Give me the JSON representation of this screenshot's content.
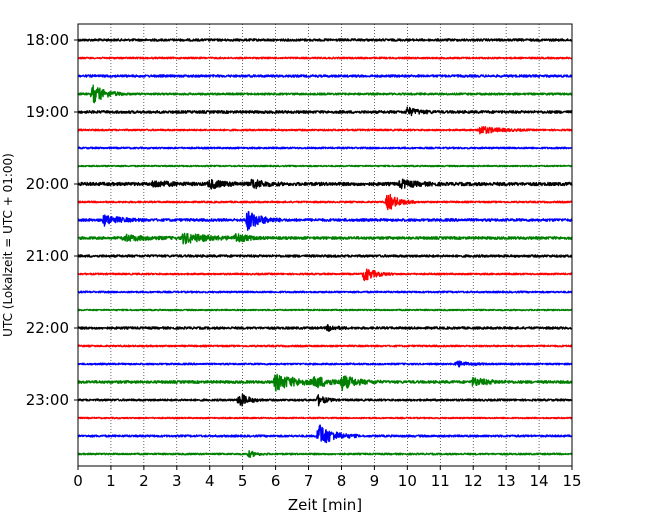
{
  "chart_data": {
    "type": "line",
    "title": "",
    "xlabel": "Zeit  [min]",
    "ylabel": "UTC (Lokalzeit = UTC + 01:00)",
    "xlim": [
      0,
      15
    ],
    "x_ticks": [
      "0",
      "1",
      "2",
      "3",
      "4",
      "5",
      "6",
      "7",
      "8",
      "9",
      "10",
      "11",
      "12",
      "13",
      "14",
      "15"
    ],
    "y_tick_labels": [
      "18:00",
      "19:00",
      "20:00",
      "21:00",
      "22:00",
      "23:00"
    ],
    "trace_interval_min": 15,
    "grid": "vertical dotted",
    "legend": "none",
    "color_cycle": [
      "#000000",
      "#ff0000",
      "#0000ff",
      "#008000"
    ],
    "traces": [
      {
        "start": "18:00",
        "color": "#000000",
        "noise": 0.7,
        "events": []
      },
      {
        "start": "18:15",
        "color": "#ff0000",
        "noise": 0.5,
        "events": []
      },
      {
        "start": "18:30",
        "color": "#0000ff",
        "noise": 0.7,
        "events": []
      },
      {
        "start": "18:45",
        "color": "#008000",
        "noise": 0.6,
        "events": [
          {
            "t": 0.45,
            "amp": 9,
            "dur": 0.35
          }
        ]
      },
      {
        "start": "19:00",
        "color": "#000000",
        "noise": 0.8,
        "events": [
          {
            "t": 10.0,
            "amp": 4,
            "dur": 0.3
          }
        ]
      },
      {
        "start": "19:15",
        "color": "#ff0000",
        "noise": 0.5,
        "events": [
          {
            "t": 12.2,
            "amp": 4,
            "dur": 0.5
          }
        ]
      },
      {
        "start": "19:30",
        "color": "#0000ff",
        "noise": 0.5,
        "events": []
      },
      {
        "start": "19:45",
        "color": "#008000",
        "noise": 0.4,
        "events": []
      },
      {
        "start": "20:00",
        "color": "#000000",
        "noise": 1.0,
        "events": [
          {
            "t": 2.3,
            "amp": 3,
            "dur": 0.4
          },
          {
            "t": 4.0,
            "amp": 4,
            "dur": 0.4
          },
          {
            "t": 5.3,
            "amp": 5,
            "dur": 0.3
          },
          {
            "t": 9.8,
            "amp": 4,
            "dur": 0.4
          }
        ]
      },
      {
        "start": "20:15",
        "color": "#ff0000",
        "noise": 0.5,
        "events": [
          {
            "t": 9.4,
            "amp": 9,
            "dur": 0.3
          }
        ]
      },
      {
        "start": "20:30",
        "color": "#0000ff",
        "noise": 0.8,
        "events": [
          {
            "t": 0.8,
            "amp": 5,
            "dur": 0.4
          },
          {
            "t": 5.15,
            "amp": 10,
            "dur": 0.35
          }
        ]
      },
      {
        "start": "20:45",
        "color": "#008000",
        "noise": 0.8,
        "events": [
          {
            "t": 1.4,
            "amp": 3,
            "dur": 0.6
          },
          {
            "t": 3.2,
            "amp": 5,
            "dur": 0.7
          },
          {
            "t": 4.8,
            "amp": 4,
            "dur": 0.3
          }
        ]
      },
      {
        "start": "21:00",
        "color": "#000000",
        "noise": 0.7,
        "events": []
      },
      {
        "start": "21:15",
        "color": "#ff0000",
        "noise": 0.5,
        "events": [
          {
            "t": 8.7,
            "amp": 7,
            "dur": 0.3
          }
        ]
      },
      {
        "start": "21:30",
        "color": "#0000ff",
        "noise": 0.5,
        "events": []
      },
      {
        "start": "21:45",
        "color": "#008000",
        "noise": 0.4,
        "events": []
      },
      {
        "start": "22:00",
        "color": "#000000",
        "noise": 0.7,
        "events": [
          {
            "t": 7.6,
            "amp": 3,
            "dur": 0.2
          }
        ]
      },
      {
        "start": "22:15",
        "color": "#ff0000",
        "noise": 0.5,
        "events": []
      },
      {
        "start": "22:30",
        "color": "#0000ff",
        "noise": 0.5,
        "events": [
          {
            "t": 11.5,
            "amp": 3,
            "dur": 0.3
          }
        ]
      },
      {
        "start": "22:45",
        "color": "#008000",
        "noise": 0.8,
        "events": [
          {
            "t": 6.0,
            "amp": 8,
            "dur": 0.6
          },
          {
            "t": 7.2,
            "amp": 5,
            "dur": 0.4
          },
          {
            "t": 8.0,
            "amp": 7,
            "dur": 0.4
          },
          {
            "t": 12.0,
            "amp": 4,
            "dur": 0.4
          }
        ]
      },
      {
        "start": "23:00",
        "color": "#000000",
        "noise": 0.6,
        "events": [
          {
            "t": 4.9,
            "amp": 7,
            "dur": 0.25
          },
          {
            "t": 7.3,
            "amp": 5,
            "dur": 0.2
          }
        ]
      },
      {
        "start": "23:15",
        "color": "#ff0000",
        "noise": 0.4,
        "events": []
      },
      {
        "start": "23:30",
        "color": "#0000ff",
        "noise": 0.6,
        "events": [
          {
            "t": 7.3,
            "amp": 12,
            "dur": 0.4
          }
        ]
      },
      {
        "start": "23:45",
        "color": "#008000",
        "noise": 0.5,
        "events": [
          {
            "t": 5.2,
            "amp": 3,
            "dur": 0.2
          }
        ]
      }
    ]
  }
}
